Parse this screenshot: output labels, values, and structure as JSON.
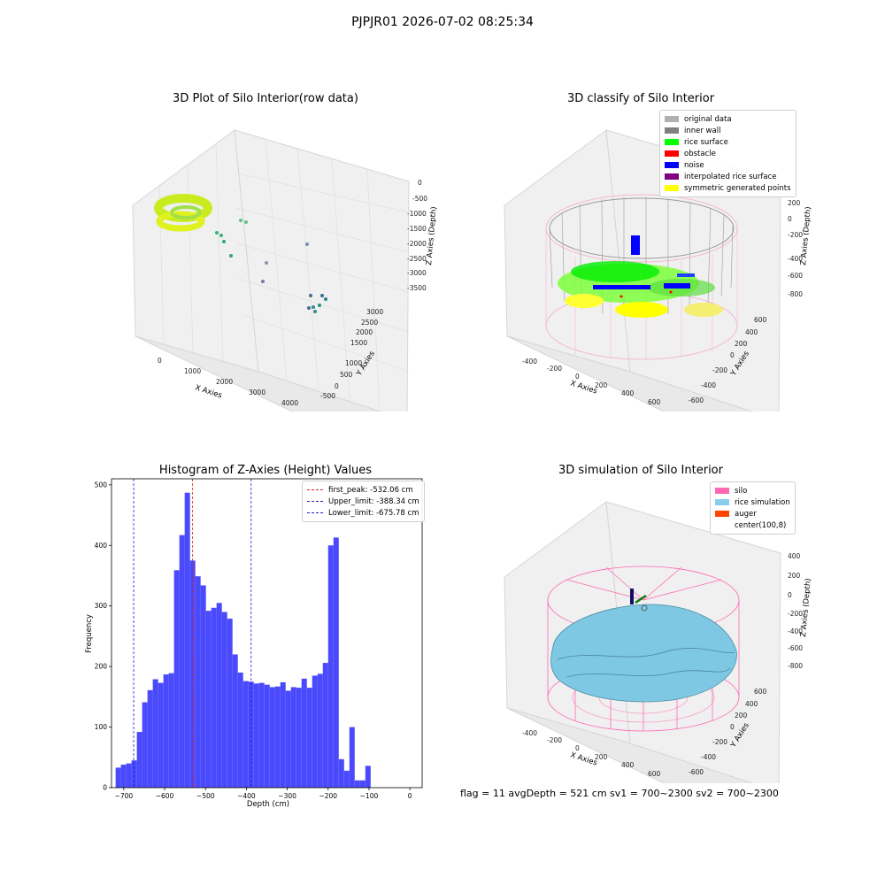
{
  "suptitle": "PJPJR01 2026-07-02 08:25:34",
  "footer": "flag = 11  avgDepth = 521 cm  sv1 = 700~2300  sv2 = 700~2300",
  "colors": {
    "hist_bar": "#4a4afc",
    "first_peak": "#e02020",
    "limits": "#1a1acc",
    "silo": "#ff69b4",
    "rice": "#7ec8e3"
  },
  "plots": {
    "raw": {
      "title": "3D Plot of Silo Interior(row data)",
      "xlabel": "X Axies",
      "ylabel": "Y Axies",
      "zlabel": "Z Axies (Depth)",
      "xticks": [
        "0",
        "1000",
        "2000",
        "3000",
        "4000"
      ],
      "yticks": [
        "-500",
        "0",
        "500",
        "1000",
        "1500",
        "2000",
        "2500",
        "3000"
      ],
      "zticks": [
        "0",
        "-500",
        "-1000",
        "-1500",
        "-2000",
        "-2500",
        "-3000",
        "-3500"
      ]
    },
    "classify": {
      "title": "3D classify of Silo Interior",
      "xlabel": "X Axies",
      "ylabel": "Y Axies",
      "zlabel": "Z Axies (Depth)",
      "xticks": [
        "-400",
        "-200",
        "0",
        "200",
        "400",
        "600"
      ],
      "yticks": [
        "-600",
        "-400",
        "-200",
        "0",
        "200",
        "400",
        "600"
      ],
      "zticks": [
        "200",
        "0",
        "-200",
        "-400",
        "-600",
        "-800"
      ],
      "legend": [
        {
          "label": "original data",
          "color": "#b0b0b0"
        },
        {
          "label": "inner wall",
          "color": "#808080"
        },
        {
          "label": "rice surface",
          "color": "#00ff00"
        },
        {
          "label": "obstacle",
          "color": "#ff0000"
        },
        {
          "label": "noise",
          "color": "#0000ff"
        },
        {
          "label": "interpolated rice surface",
          "color": "#800080"
        },
        {
          "label": "symmetric generated points",
          "color": "#ffff00"
        }
      ]
    },
    "simulation": {
      "title": "3D simulation of Silo Interior",
      "xlabel": "X Axies",
      "ylabel": "Y Axies",
      "zlabel": "Z Axies (Depth)",
      "xticks": [
        "-400",
        "-200",
        "0",
        "200",
        "400",
        "600"
      ],
      "yticks": [
        "-600",
        "-400",
        "-200",
        "0",
        "200",
        "400",
        "600"
      ],
      "zticks": [
        "400",
        "200",
        "0",
        "-200",
        "-400",
        "-600",
        "-800"
      ],
      "legend": [
        {
          "label": "silo",
          "color": "#ff69b4"
        },
        {
          "label": "rice simulation",
          "color": "#87ceeb"
        },
        {
          "label": "auger",
          "color": "#ff4500"
        },
        {
          "label": "center(100,8)",
          "color": ""
        }
      ]
    }
  },
  "chart_data": {
    "type": "bar",
    "title": "Histogram of Z-Axies (Height) Values",
    "xlabel": "Depth (cm)",
    "ylabel": "Frequency",
    "xlim": [
      -730,
      30
    ],
    "ylim": [
      0,
      510
    ],
    "xticks": [
      -700,
      -600,
      -500,
      -400,
      -300,
      -200,
      -100,
      0
    ],
    "yticks": [
      0,
      100,
      200,
      300,
      400,
      500
    ],
    "bin_start": -720,
    "bin_width": 13,
    "values": [
      33,
      38,
      40,
      45,
      92,
      141,
      161,
      179,
      173,
      187,
      189,
      359,
      417,
      487,
      375,
      349,
      334,
      292,
      297,
      305,
      290,
      279,
      220,
      190,
      176,
      175,
      172,
      173,
      170,
      166,
      167,
      174,
      160,
      166,
      165,
      180,
      165,
      185,
      188,
      206,
      400,
      413,
      47,
      28,
      100,
      12,
      12,
      36
    ],
    "vlines": [
      {
        "label": "first_peak: -532.06 cm",
        "x": -532.06,
        "color": "#e02020"
      },
      {
        "label": "Upper_limit: -388.34 cm",
        "x": -388.34,
        "color": "#1a1acc"
      },
      {
        "label": "Lower_limit: -675.78 cm",
        "x": -675.78,
        "color": "#1a1acc"
      }
    ],
    "legend_position": "top-right",
    "grid": false
  }
}
